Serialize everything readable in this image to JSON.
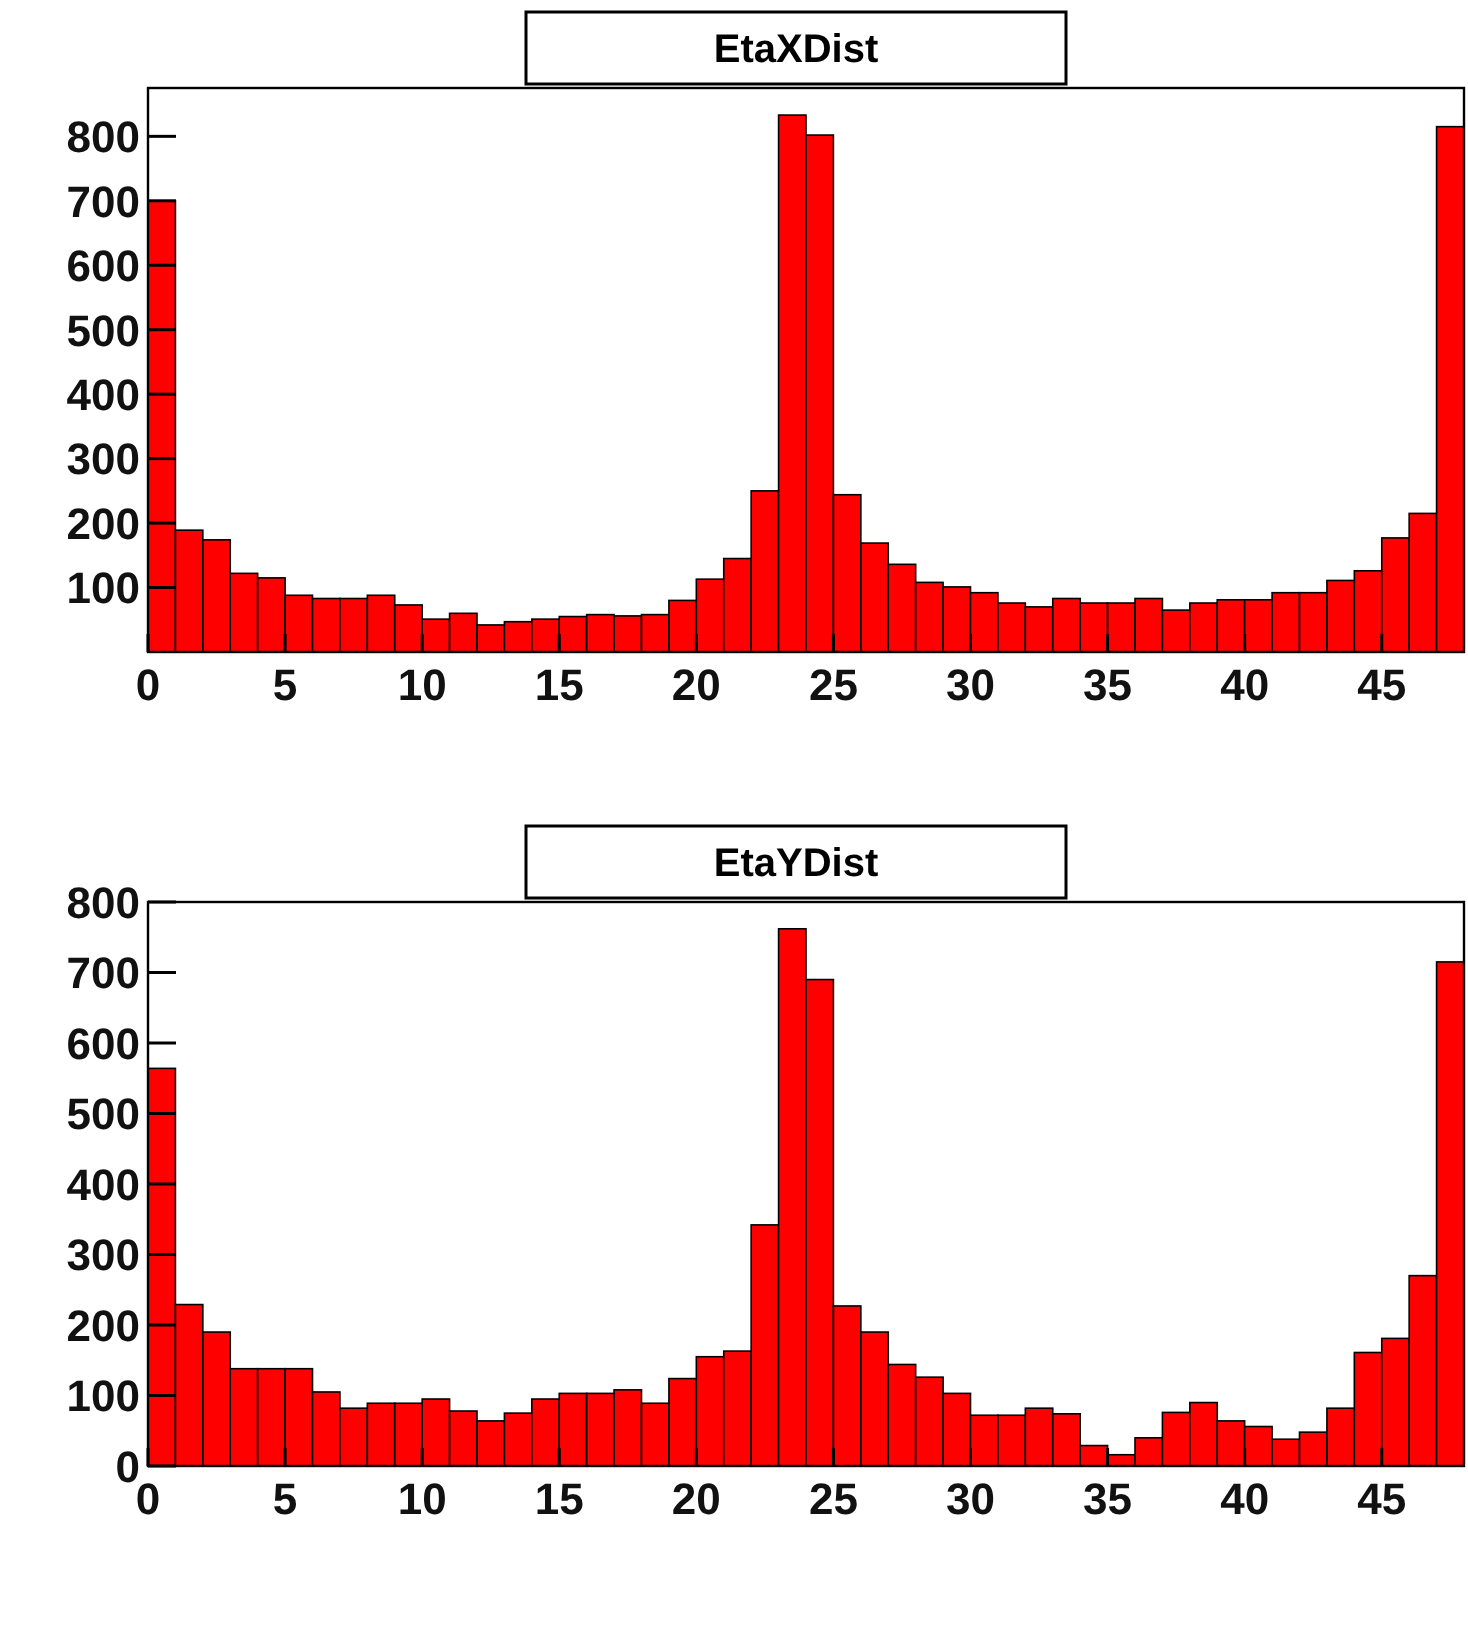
{
  "chart_data": [
    {
      "type": "histogram",
      "title": "EtaXDist",
      "color": "#ff0000",
      "bins": [
        0,
        1,
        2,
        3,
        4,
        5,
        6,
        7,
        8,
        9,
        10,
        11,
        12,
        13,
        14,
        15,
        16,
        17,
        18,
        19,
        20,
        21,
        22,
        23,
        24,
        25,
        26,
        27,
        28,
        29,
        30,
        31,
        32,
        33,
        34,
        35,
        36,
        37,
        38,
        39,
        40,
        41,
        42,
        43,
        44,
        45,
        46,
        47,
        48
      ],
      "values": [
        700,
        189,
        174,
        122,
        115,
        88,
        83,
        83,
        88,
        73,
        51,
        60,
        42,
        47,
        51,
        55,
        58,
        56,
        58,
        80,
        113,
        145,
        250,
        833,
        802,
        244,
        169,
        136,
        108,
        101,
        92,
        76,
        70,
        83,
        76,
        76,
        83,
        65,
        76,
        81,
        81,
        92,
        92,
        111,
        126,
        177,
        215,
        815
      ],
      "xlim": [
        0,
        48
      ],
      "xticks": [
        0,
        5,
        10,
        15,
        20,
        25,
        30,
        35,
        40,
        45
      ],
      "ylim": [
        0,
        875
      ],
      "yticks": [
        100,
        200,
        300,
        400,
        500,
        600,
        700,
        800
      ]
    },
    {
      "type": "histogram",
      "title": "EtaYDist",
      "color": "#ff0000",
      "bins": [
        0,
        1,
        2,
        3,
        4,
        5,
        6,
        7,
        8,
        9,
        10,
        11,
        12,
        13,
        14,
        15,
        16,
        17,
        18,
        19,
        20,
        21,
        22,
        23,
        24,
        25,
        26,
        27,
        28,
        29,
        30,
        31,
        32,
        33,
        34,
        35,
        36,
        37,
        38,
        39,
        40,
        41,
        42,
        43,
        44,
        45,
        46,
        47,
        48
      ],
      "values": [
        564,
        229,
        190,
        138,
        138,
        138,
        105,
        82,
        89,
        89,
        95,
        78,
        64,
        75,
        95,
        103,
        103,
        108,
        89,
        124,
        155,
        163,
        342,
        762,
        690,
        227,
        190,
        144,
        126,
        103,
        72,
        72,
        82,
        74,
        29,
        16,
        40,
        76,
        90,
        64,
        56,
        38,
        48,
        82,
        161,
        181,
        270,
        715
      ],
      "xlim": [
        0,
        48
      ],
      "xticks": [
        0,
        5,
        10,
        15,
        20,
        25,
        30,
        35,
        40,
        45
      ],
      "ylim": [
        0,
        800
      ],
      "yticks": [
        0,
        100,
        200,
        300,
        400,
        500,
        600,
        700,
        800
      ]
    }
  ]
}
